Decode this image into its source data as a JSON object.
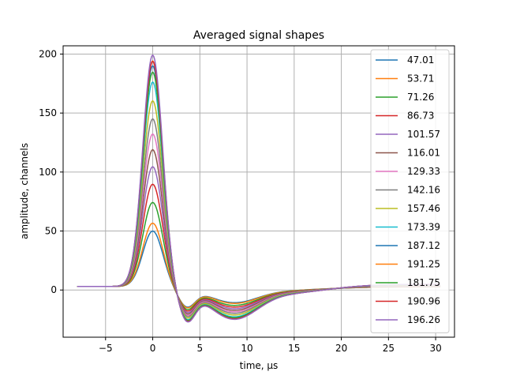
{
  "chart_data": {
    "type": "line",
    "title": "Averaged signal shapes",
    "xlabel": "time, µs",
    "ylabel": "amplitude, channels",
    "xlim": [
      -9.5,
      32
    ],
    "ylim": [
      -40,
      207
    ],
    "xticks": [
      -5,
      0,
      5,
      10,
      15,
      20,
      25,
      30
    ],
    "xtick_labels": [
      "−5",
      "0",
      "5",
      "10",
      "15",
      "20",
      "25",
      "30"
    ],
    "yticks": [
      0,
      50,
      100,
      150,
      200
    ],
    "ytick_labels": [
      "0",
      "50",
      "100",
      "150",
      "200"
    ],
    "grid": true,
    "legend_position": "upper-right",
    "x_range": [
      -8,
      30.5
    ],
    "series": [
      {
        "name": "47.01",
        "peak": 47.01,
        "color": "#1f77b4"
      },
      {
        "name": "53.71",
        "peak": 53.71,
        "color": "#ff7f0e"
      },
      {
        "name": "71.26",
        "peak": 71.26,
        "color": "#2ca02c"
      },
      {
        "name": "86.73",
        "peak": 86.73,
        "color": "#d62728"
      },
      {
        "name": "101.57",
        "peak": 101.57,
        "color": "#9467bd"
      },
      {
        "name": "116.01",
        "peak": 116.01,
        "color": "#8c564b"
      },
      {
        "name": "129.33",
        "peak": 129.33,
        "color": "#e377c2"
      },
      {
        "name": "142.16",
        "peak": 142.16,
        "color": "#7f7f7f"
      },
      {
        "name": "157.46",
        "peak": 157.46,
        "color": "#bcbd22"
      },
      {
        "name": "173.39",
        "peak": 173.39,
        "color": "#17becf"
      },
      {
        "name": "187.12",
        "peak": 187.12,
        "color": "#1f77b4"
      },
      {
        "name": "191.25",
        "peak": 191.25,
        "color": "#ff7f0e"
      },
      {
        "name": "181.75",
        "peak": 181.75,
        "color": "#2ca02c"
      },
      {
        "name": "190.96",
        "peak": 190.96,
        "color": "#d62728"
      },
      {
        "name": "196.26",
        "peak": 196.26,
        "color": "#9467bd"
      }
    ]
  }
}
